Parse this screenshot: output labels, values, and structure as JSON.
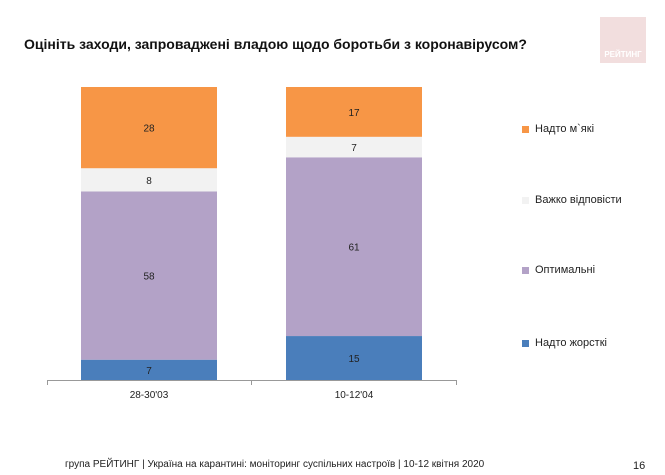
{
  "title": "Оцініть заходи, запроваджені владою щодо боротьби з коронавірусом?",
  "logo_text": "РЕЙТИНГ",
  "footer": "група РЕЙТИНГ | Україна на карантині: моніторинг суспільних настроїв  | 10-12 квітня  2020",
  "page_number": "16",
  "chart_data": {
    "type": "bar",
    "stacked": true,
    "categories": [
      "28-30'03",
      "10-12'04"
    ],
    "series": [
      {
        "name": "Надто жорсткі",
        "values": [
          7,
          15
        ],
        "color": "#4a7ebb"
      },
      {
        "name": "Оптимальні",
        "values": [
          58,
          61
        ],
        "color": "#b3a2c7"
      },
      {
        "name": "Важко відповісти",
        "values": [
          8,
          7
        ],
        "color": "#f2f2f2"
      },
      {
        "name": "Надто м`які",
        "values": [
          28,
          17
        ],
        "color": "#f79646"
      }
    ],
    "legend": "right",
    "grid": false
  }
}
